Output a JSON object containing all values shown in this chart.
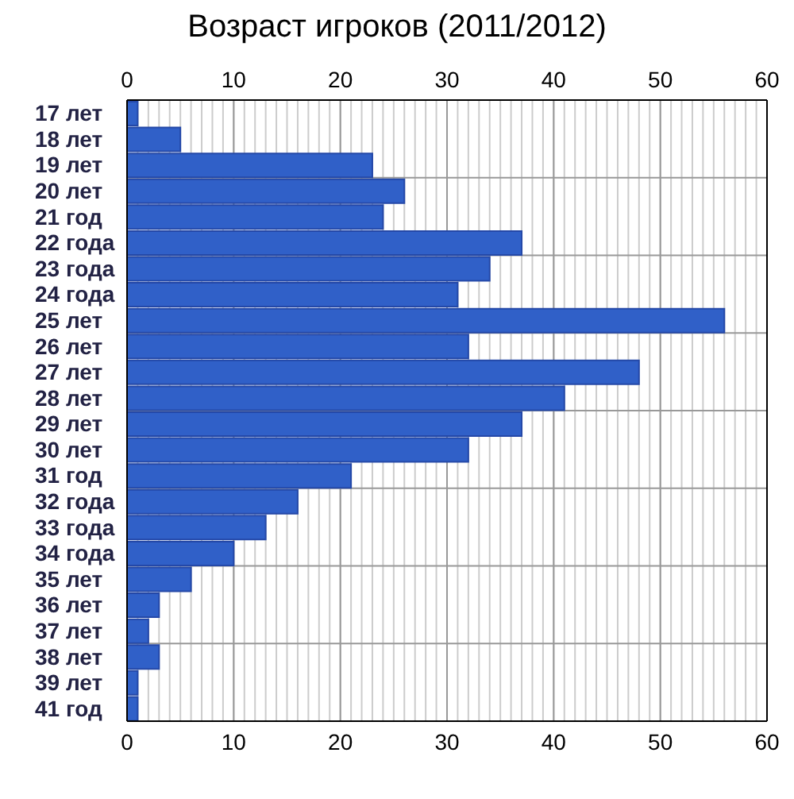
{
  "chart_data": {
    "type": "bar",
    "orientation": "horizontal",
    "title": "Возраст игроков (2011/2012)",
    "categories": [
      "17 лет",
      "18 лет",
      "19 лет",
      "20 лет",
      "21 год",
      "22 года",
      "23 года",
      "24 года",
      "25 лет",
      "26 лет",
      "27 лет",
      "28 лет",
      "29 лет",
      "30 лет",
      "31 год",
      "32 года",
      "33 года",
      "34 года",
      "35 лет",
      "36 лет",
      "37 лет",
      "38 лет",
      "39 лет",
      "41 год"
    ],
    "values": [
      1,
      5,
      23,
      26,
      24,
      37,
      34,
      31,
      56,
      32,
      48,
      41,
      37,
      32,
      21,
      16,
      13,
      10,
      6,
      3,
      2,
      3,
      1,
      1
    ],
    "color": "#3060c8",
    "xlim": [
      0,
      60
    ],
    "xticks": [
      0,
      10,
      20,
      30,
      40,
      50,
      60
    ],
    "x2lim": [
      0,
      60
    ],
    "x2ticks": [
      0,
      10,
      20,
      30,
      40,
      50,
      60
    ],
    "grid": true
  }
}
